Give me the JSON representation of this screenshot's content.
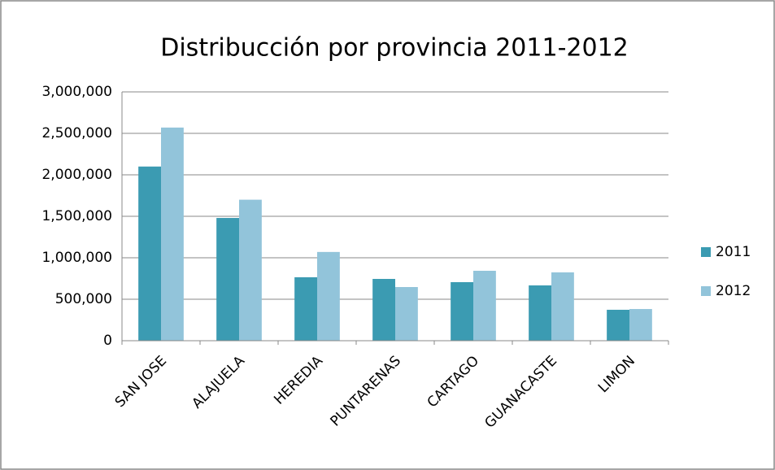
{
  "chart_data": {
    "type": "bar",
    "title": "Distribucción por provincia 2011-2012",
    "categories": [
      "SAN JOSE",
      "ALAJUELA",
      "HEREDIA",
      "PUNTARENAS",
      "CARTAGO",
      "GUANACASTE",
      "LIMON"
    ],
    "series": [
      {
        "name": "2011",
        "color": "#3b9bb2",
        "values": [
          2100000,
          1480000,
          765000,
          745000,
          706000,
          667000,
          373000
        ]
      },
      {
        "name": "2012",
        "color": "#92c4da",
        "values": [
          2570000,
          1700000,
          1070000,
          647000,
          843000,
          824000,
          382000
        ]
      }
    ],
    "ylim": [
      0,
      3000000
    ],
    "yticks": [
      0,
      {
        "value": 500000,
        "label": "500,000"
      },
      {
        "value": 1000000,
        "label": "1,000,000"
      },
      {
        "value": 1500000,
        "label": "1,500,000"
      },
      {
        "value": 2000000,
        "label": "2,000,000"
      },
      {
        "value": 2500000,
        "label": "2,500,000"
      },
      {
        "value": 3000000,
        "label": "3,000,000"
      }
    ],
    "grid": true,
    "legend": "right"
  }
}
